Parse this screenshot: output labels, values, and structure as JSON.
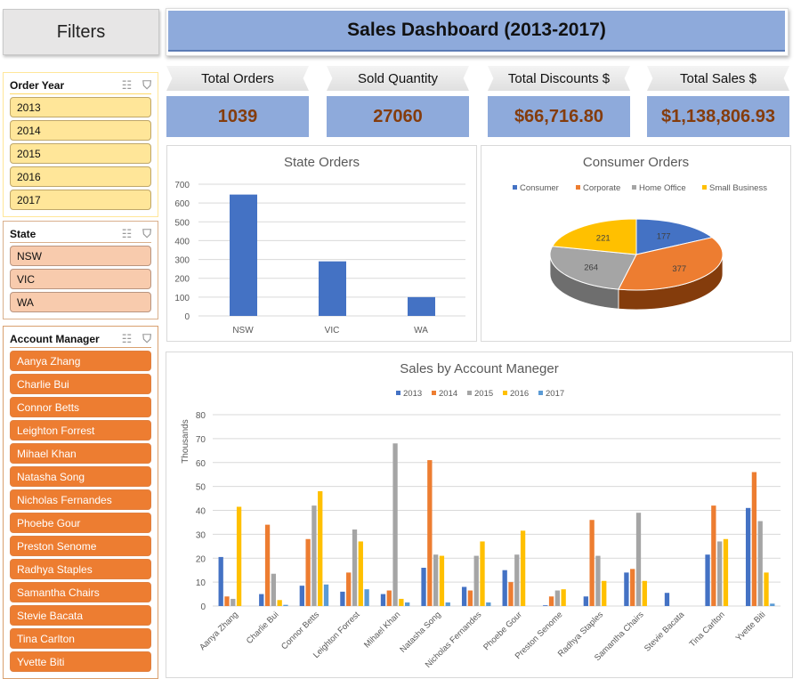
{
  "header": {
    "filters_label": "Filters",
    "title": "Sales Dashboard (2013-2017)"
  },
  "kpis": [
    {
      "label": "Total Orders",
      "value": "1039"
    },
    {
      "label": "Sold Quantity",
      "value": "27060"
    },
    {
      "label": "Total Discounts $",
      "value": "$66,716.80"
    },
    {
      "label": "Total Sales $",
      "value": "$1,138,806.93"
    }
  ],
  "slicers": {
    "year": {
      "title": "Order Year",
      "items": [
        "2013",
        "2014",
        "2015",
        "2016",
        "2017"
      ]
    },
    "state": {
      "title": "State",
      "items": [
        "NSW",
        "VIC",
        "WA"
      ]
    },
    "manager": {
      "title": "Account Manager",
      "items": [
        "Aanya Zhang",
        "Charlie Bui",
        "Connor Betts",
        "Leighton Forrest",
        "Mihael Khan",
        "Natasha Song",
        "Nicholas Fernandes",
        "Phoebe Gour",
        "Preston Senome",
        "Radhya Staples",
        "Samantha Chairs",
        "Stevie Bacata",
        "Tina Carlton",
        "Yvette Biti"
      ]
    }
  },
  "icons": {
    "multiselect": "multi-select-icon",
    "clear_filter": "clear-filter-icon"
  },
  "colors": {
    "blue": "#4472c4",
    "orange": "#ed7d31",
    "gray": "#a5a5a5",
    "yellow": "#ffc000",
    "lightblue": "#5b9bd5"
  },
  "chart_data": [
    {
      "type": "bar",
      "title": "State Orders",
      "categories": [
        "NSW",
        "VIC",
        "WA"
      ],
      "values": [
        645,
        290,
        100
      ],
      "ylim": [
        0,
        700
      ],
      "yticks": [
        0,
        100,
        200,
        300,
        400,
        500,
        600,
        700
      ],
      "grid": true,
      "xlabel": "",
      "ylabel": ""
    },
    {
      "type": "pie",
      "title": "Consumer Orders",
      "categories": [
        "Consumer",
        "Corporate",
        "Home Office",
        "Small Business"
      ],
      "values": [
        177,
        377,
        264,
        221
      ],
      "legend": "top"
    },
    {
      "type": "bar",
      "title": "Sales by Account Maneger",
      "ylabel": "Thousands",
      "ylim": [
        0,
        80
      ],
      "yticks": [
        0,
        10,
        20,
        30,
        40,
        50,
        60,
        70,
        80
      ],
      "grid": true,
      "legend": "top",
      "categories": [
        "Aanya Zhang",
        "Charlie Bui",
        "Connor Betts",
        "Leighton Forrest",
        "Mihael Khan",
        "Natasha Song",
        "Nicholas Fernandes",
        "Phoebe Gour",
        "Preston Senome",
        "Radhya Staples",
        "Samantha Chairs",
        "Stevie Bacata",
        "Tina Carlton",
        "Yvette Biti"
      ],
      "series": [
        {
          "name": "2013",
          "values": [
            20.5,
            5,
            8.5,
            6,
            5,
            16,
            8,
            15,
            0.3,
            4,
            14,
            5.5,
            21.5,
            41
          ]
        },
        {
          "name": "2014",
          "values": [
            4,
            34,
            28,
            14,
            6.5,
            61,
            6.5,
            10,
            4,
            36,
            15.5,
            0,
            42,
            56
          ]
        },
        {
          "name": "2015",
          "values": [
            3,
            13.5,
            42,
            32,
            68,
            21.5,
            21,
            21.5,
            6.5,
            21,
            39,
            0,
            27,
            35.5
          ]
        },
        {
          "name": "2016",
          "values": [
            41.5,
            2.5,
            48,
            27,
            3,
            21,
            27,
            31.5,
            7,
            10.5,
            10.5,
            0,
            28,
            14
          ]
        },
        {
          "name": "2017",
          "values": [
            0,
            0.5,
            9,
            7,
            1.5,
            1.5,
            1.5,
            0,
            0,
            0,
            0,
            0,
            0,
            1
          ]
        }
      ]
    }
  ]
}
